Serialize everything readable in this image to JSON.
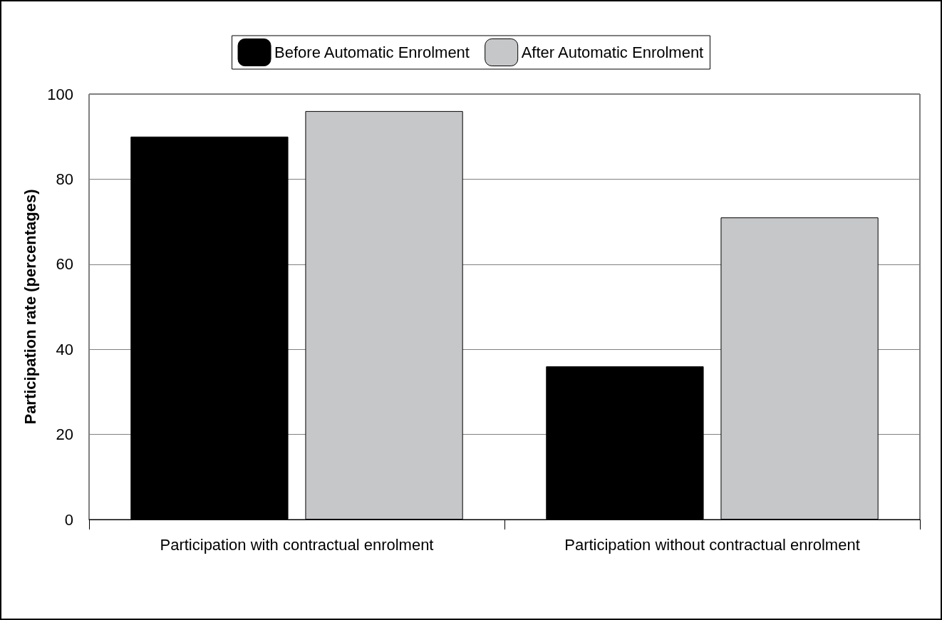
{
  "chart_data": {
    "type": "bar",
    "ylabel": "Participation rate (percentages)",
    "categories": [
      "Participation with contractual enrolment",
      "Participation without contractual enrolment"
    ],
    "series": [
      {
        "name": "Before Automatic Enrolment",
        "color": "#000000",
        "values": [
          90,
          36
        ]
      },
      {
        "name": "After Automatic Enrolment",
        "color": "#c6c7c9",
        "values": [
          96,
          71
        ]
      }
    ],
    "ylim": [
      0,
      100
    ],
    "yticks": [
      0,
      20,
      40,
      60,
      80,
      100
    ],
    "grid": "y",
    "legend": "top"
  }
}
